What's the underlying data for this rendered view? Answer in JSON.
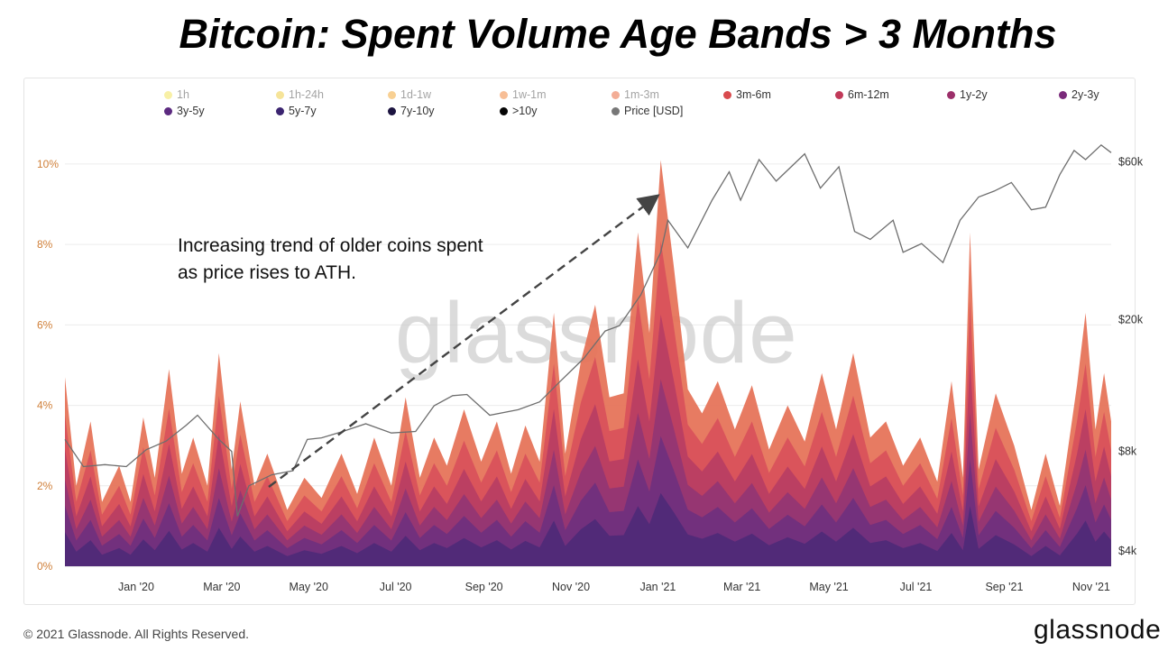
{
  "title": "Bitcoin: Spent Volume Age Bands > 3 Months",
  "annotation": "Increasing trend of older coins spent\nas price rises to ATH.",
  "watermark": "glassnode",
  "footer": {
    "copyright": "© 2021 Glassnode. All Rights Reserved.",
    "brand": "glassnode"
  },
  "legend": [
    {
      "label": "1h",
      "color": "#f2e35d",
      "muted": true
    },
    {
      "label": "1h-24h",
      "color": "#efce45",
      "muted": true
    },
    {
      "label": "1d-1w",
      "color": "#f3a93a",
      "muted": true
    },
    {
      "label": "1w-1m",
      "color": "#f0893f",
      "muted": true
    },
    {
      "label": "1m-3m",
      "color": "#e9693f",
      "muted": true
    },
    {
      "label": "3m-6m",
      "color": "#d94b4e"
    },
    {
      "label": "6m-12m",
      "color": "#c13a59"
    },
    {
      "label": "1y-2y",
      "color": "#9c2f6a"
    },
    {
      "label": "2y-3y",
      "color": "#7a2a7a"
    },
    {
      "label": "3y-5y",
      "color": "#5c2a80"
    },
    {
      "label": "5y-7y",
      "color": "#3b2470"
    },
    {
      "label": "7y-10y",
      "color": "#1c1440"
    },
    {
      "label": ">10y",
      "color": "#050505"
    },
    {
      "label": "Price [USD]",
      "color": "#777777"
    }
  ],
  "chart_data": {
    "type": "area",
    "stacked": true,
    "x_unit": "date",
    "x_range": [
      "2019-11-12",
      "2021-11-15"
    ],
    "x_ticks": [
      "Jan '20",
      "Mar '20",
      "May '20",
      "Jul '20",
      "Sep '20",
      "Nov '20",
      "Jan '21",
      "Mar '21",
      "May '21",
      "Jul '21",
      "Sep '21",
      "Nov '21"
    ],
    "y_left": {
      "unit": "percent",
      "range": [
        0,
        11.5
      ],
      "ticks": [
        "0%",
        "2%",
        "4%",
        "6%",
        "8%",
        "10%"
      ]
    },
    "y_right": {
      "scale": "log",
      "unit": "USD",
      "range": [
        3600,
        90000
      ],
      "ticks": [
        {
          "label": "$4k",
          "value": 4000
        },
        {
          "label": "$8k",
          "value": 8000
        },
        {
          "label": "$20k",
          "value": 20000
        },
        {
          "label": "$60k",
          "value": 60000
        }
      ]
    },
    "total_percent": [
      [
        "2019-11-12",
        4.7
      ],
      [
        "2019-11-20",
        2.0
      ],
      [
        "2019-11-30",
        3.6
      ],
      [
        "2019-12-08",
        1.6
      ],
      [
        "2019-12-20",
        2.5
      ],
      [
        "2019-12-28",
        1.6
      ],
      [
        "2020-01-06",
        3.7
      ],
      [
        "2020-01-14",
        2.2
      ],
      [
        "2020-01-24",
        4.9
      ],
      [
        "2020-02-02",
        2.3
      ],
      [
        "2020-02-10",
        3.2
      ],
      [
        "2020-02-20",
        2.0
      ],
      [
        "2020-02-28",
        5.3
      ],
      [
        "2020-03-08",
        2.4
      ],
      [
        "2020-03-14",
        4.1
      ],
      [
        "2020-03-24",
        2.0
      ],
      [
        "2020-04-02",
        2.8
      ],
      [
        "2020-04-16",
        1.4
      ],
      [
        "2020-04-28",
        2.2
      ],
      [
        "2020-05-10",
        1.7
      ],
      [
        "2020-05-24",
        2.8
      ],
      [
        "2020-06-04",
        1.8
      ],
      [
        "2020-06-16",
        3.2
      ],
      [
        "2020-06-28",
        2.0
      ],
      [
        "2020-07-08",
        4.2
      ],
      [
        "2020-07-18",
        2.2
      ],
      [
        "2020-07-28",
        3.2
      ],
      [
        "2020-08-06",
        2.5
      ],
      [
        "2020-08-18",
        3.9
      ],
      [
        "2020-08-30",
        2.6
      ],
      [
        "2020-09-10",
        3.6
      ],
      [
        "2020-09-20",
        2.3
      ],
      [
        "2020-09-30",
        3.5
      ],
      [
        "2020-10-10",
        2.6
      ],
      [
        "2020-10-20",
        6.3
      ],
      [
        "2020-10-28",
        2.8
      ],
      [
        "2020-11-08",
        5.1
      ],
      [
        "2020-11-18",
        6.5
      ],
      [
        "2020-11-28",
        4.2
      ],
      [
        "2020-12-08",
        4.3
      ],
      [
        "2020-12-18",
        8.3
      ],
      [
        "2020-12-26",
        5.8
      ],
      [
        "2021-01-03",
        10.1
      ],
      [
        "2021-01-12",
        7.5
      ],
      [
        "2021-01-22",
        4.4
      ],
      [
        "2021-02-01",
        3.8
      ],
      [
        "2021-02-12",
        4.6
      ],
      [
        "2021-02-24",
        3.4
      ],
      [
        "2021-03-08",
        4.5
      ],
      [
        "2021-03-20",
        2.9
      ],
      [
        "2021-04-02",
        4.0
      ],
      [
        "2021-04-14",
        3.1
      ],
      [
        "2021-04-26",
        4.8
      ],
      [
        "2021-05-06",
        3.4
      ],
      [
        "2021-05-18",
        5.3
      ],
      [
        "2021-05-30",
        3.2
      ],
      [
        "2021-06-10",
        3.6
      ],
      [
        "2021-06-22",
        2.5
      ],
      [
        "2021-07-04",
        3.2
      ],
      [
        "2021-07-16",
        2.1
      ],
      [
        "2021-07-26",
        4.6
      ],
      [
        "2021-08-03",
        2.2
      ],
      [
        "2021-08-08",
        8.3
      ],
      [
        "2021-08-14",
        2.4
      ],
      [
        "2021-08-26",
        4.3
      ],
      [
        "2021-09-08",
        3.0
      ],
      [
        "2021-09-20",
        1.4
      ],
      [
        "2021-09-30",
        2.8
      ],
      [
        "2021-10-10",
        1.5
      ],
      [
        "2021-10-22",
        4.5
      ],
      [
        "2021-10-28",
        6.3
      ],
      [
        "2021-11-04",
        3.4
      ],
      [
        "2021-11-10",
        4.8
      ],
      [
        "2021-11-15",
        3.6
      ]
    ],
    "price_usd": [
      [
        "2019-11-12",
        8700
      ],
      [
        "2019-11-25",
        7200
      ],
      [
        "2019-12-10",
        7300
      ],
      [
        "2019-12-25",
        7200
      ],
      [
        "2020-01-08",
        8100
      ],
      [
        "2020-01-22",
        8600
      ],
      [
        "2020-02-05",
        9600
      ],
      [
        "2020-02-13",
        10300
      ],
      [
        "2020-02-28",
        8700
      ],
      [
        "2020-03-08",
        8000
      ],
      [
        "2020-03-12",
        5100
      ],
      [
        "2020-03-20",
        6300
      ],
      [
        "2020-04-05",
        6800
      ],
      [
        "2020-04-20",
        7000
      ],
      [
        "2020-04-30",
        8700
      ],
      [
        "2020-05-10",
        8800
      ],
      [
        "2020-05-25",
        9200
      ],
      [
        "2020-06-10",
        9700
      ],
      [
        "2020-06-28",
        9100
      ],
      [
        "2020-07-15",
        9200
      ],
      [
        "2020-07-28",
        11000
      ],
      [
        "2020-08-10",
        11800
      ],
      [
        "2020-08-20",
        11900
      ],
      [
        "2020-09-05",
        10300
      ],
      [
        "2020-09-25",
        10700
      ],
      [
        "2020-10-10",
        11300
      ],
      [
        "2020-10-25",
        13100
      ],
      [
        "2020-11-10",
        15300
      ],
      [
        "2020-11-25",
        18500
      ],
      [
        "2020-12-05",
        19200
      ],
      [
        "2020-12-20",
        23800
      ],
      [
        "2021-01-03",
        32000
      ],
      [
        "2021-01-08",
        40000
      ],
      [
        "2021-01-22",
        33000
      ],
      [
        "2021-02-08",
        46000
      ],
      [
        "2021-02-20",
        56000
      ],
      [
        "2021-02-28",
        46000
      ],
      [
        "2021-03-13",
        61000
      ],
      [
        "2021-03-25",
        52500
      ],
      [
        "2021-04-14",
        63500
      ],
      [
        "2021-04-25",
        50000
      ],
      [
        "2021-05-08",
        58000
      ],
      [
        "2021-05-19",
        37000
      ],
      [
        "2021-05-30",
        35000
      ],
      [
        "2021-06-15",
        40000
      ],
      [
        "2021-06-22",
        32000
      ],
      [
        "2021-07-05",
        34000
      ],
      [
        "2021-07-20",
        29800
      ],
      [
        "2021-08-01",
        40000
      ],
      [
        "2021-08-14",
        47000
      ],
      [
        "2021-08-25",
        49000
      ],
      [
        "2021-09-06",
        52000
      ],
      [
        "2021-09-20",
        43000
      ],
      [
        "2021-09-30",
        43800
      ],
      [
        "2021-10-10",
        55000
      ],
      [
        "2021-10-20",
        65000
      ],
      [
        "2021-10-28",
        61000
      ],
      [
        "2021-11-08",
        67500
      ],
      [
        "2021-11-15",
        64000
      ]
    ]
  }
}
